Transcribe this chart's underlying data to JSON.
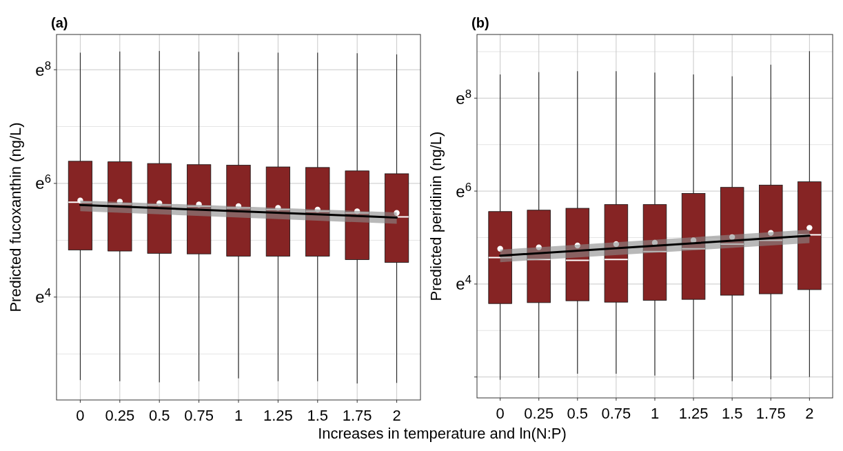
{
  "chart_data": [
    {
      "type": "box",
      "title": "(a)",
      "xlabel": "Increases in temperature and ln(N:P)",
      "ylabel": "Predicted fucoxanthin (ng/L)",
      "categories": [
        "0",
        "0.25",
        "0.5",
        "0.75",
        "1",
        "1.25",
        "1.5",
        "1.75",
        "2"
      ],
      "ylim": [
        2.19,
        8.62
      ],
      "yticks": [
        {
          "value": 4,
          "label": "e$^{4}$"
        },
        {
          "value": 6,
          "label": "e$^{6}$"
        },
        {
          "value": 8,
          "label": "e$^{8}$"
        }
      ],
      "grid": true,
      "series": [
        {
          "color": "#862424",
          "boxes": [
            {
              "low": 2.54,
              "q1": 4.83,
              "median": 5.67,
              "q3": 6.39,
              "high": 8.3
            },
            {
              "low": 2.52,
              "q1": 4.81,
              "median": 5.64,
              "q3": 6.38,
              "high": 8.32
            },
            {
              "low": 2.5,
              "q1": 4.77,
              "median": 5.62,
              "q3": 6.35,
              "high": 8.33
            },
            {
              "low": 2.52,
              "q1": 4.76,
              "median": 5.6,
              "q3": 6.33,
              "high": 8.32
            },
            {
              "low": 2.57,
              "q1": 4.72,
              "median": 5.57,
              "q3": 6.32,
              "high": 8.31
            },
            {
              "low": 2.52,
              "q1": 4.72,
              "median": 5.54,
              "q3": 6.29,
              "high": 8.3
            },
            {
              "low": 2.52,
              "q1": 4.72,
              "median": 5.51,
              "q3": 6.28,
              "high": 8.3
            },
            {
              "low": 2.48,
              "q1": 4.66,
              "median": 5.48,
              "q3": 6.22,
              "high": 8.29
            },
            {
              "low": 2.49,
              "q1": 4.61,
              "median": 5.41,
              "q3": 6.17,
              "high": 8.27
            }
          ]
        },
        {
          "type": "scatter",
          "color": "#ffffff",
          "marker": "circle",
          "x": [
            "0",
            "0.25",
            "0.5",
            "0.75",
            "1",
            "1.25",
            "1.5",
            "1.75",
            "2"
          ],
          "values": [
            5.7,
            5.68,
            5.65,
            5.63,
            5.6,
            5.57,
            5.54,
            5.51,
            5.48
          ]
        },
        {
          "type": "line",
          "color": "#000000",
          "x": [
            "0",
            "2"
          ],
          "values": [
            5.62,
            5.4
          ],
          "lower": [
            5.51,
            5.29
          ],
          "upper": [
            5.7,
            5.49
          ]
        }
      ]
    },
    {
      "type": "box",
      "title": "(b)",
      "ylabel": "Predicted peridinin (ng/L)",
      "categories": [
        "0",
        "0.25",
        "0.5",
        "0.75",
        "1",
        "1.25",
        "1.5",
        "1.75",
        "2"
      ],
      "ylim": [
        1.55,
        9.37
      ],
      "yticks": [
        {
          "value": 2,
          "label": null
        },
        {
          "value": 4,
          "label": "e$^{4}$"
        },
        {
          "value": 6,
          "label": "e$^{6}$"
        },
        {
          "value": 8,
          "label": "e$^{8}$"
        }
      ],
      "grid": true,
      "series": [
        {
          "color": "#862424",
          "boxes": [
            {
              "low": 1.94,
              "q1": 3.58,
              "median": 4.57,
              "q3": 5.56,
              "high": 8.51
            },
            {
              "low": 1.98,
              "q1": 3.6,
              "median": 4.53,
              "q3": 5.59,
              "high": 8.56
            },
            {
              "low": 2.07,
              "q1": 3.64,
              "median": 4.51,
              "q3": 5.63,
              "high": 8.58
            },
            {
              "low": 2.07,
              "q1": 3.61,
              "median": 4.53,
              "q3": 5.71,
              "high": 8.58
            },
            {
              "low": 2.03,
              "q1": 3.65,
              "median": 4.7,
              "q3": 5.71,
              "high": 8.55
            },
            {
              "low": 1.95,
              "q1": 3.67,
              "median": 4.76,
              "q3": 5.95,
              "high": 8.51
            },
            {
              "low": 1.91,
              "q1": 3.76,
              "median": 4.86,
              "q3": 6.08,
              "high": 8.47
            },
            {
              "low": 1.95,
              "q1": 3.79,
              "median": 4.94,
              "q3": 6.13,
              "high": 8.72
            },
            {
              "low": 2.0,
              "q1": 3.88,
              "median": 5.06,
              "q3": 6.2,
              "high": 9.01
            }
          ]
        },
        {
          "type": "scatter",
          "color": "#ffffff",
          "marker": "circle",
          "x": [
            "0",
            "0.25",
            "0.5",
            "0.75",
            "1",
            "1.25",
            "1.5",
            "1.75",
            "2"
          ],
          "values": [
            4.76,
            4.79,
            4.83,
            4.86,
            4.89,
            4.94,
            5.01,
            5.1,
            5.21
          ]
        },
        {
          "type": "line",
          "color": "#000000",
          "x": [
            "0",
            "2"
          ],
          "values": [
            4.61,
            5.04
          ],
          "lower": [
            4.47,
            4.88
          ],
          "upper": [
            4.74,
            5.17
          ]
        }
      ]
    }
  ]
}
